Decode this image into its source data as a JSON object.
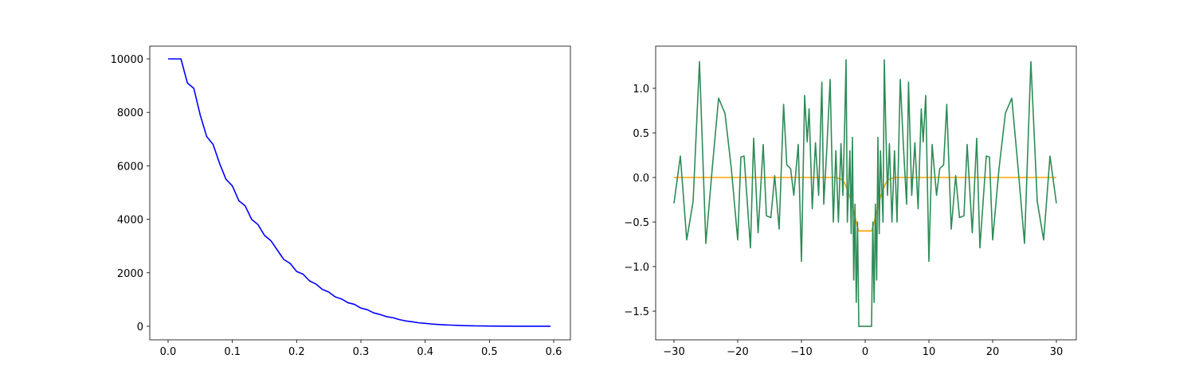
{
  "chart_data": [
    {
      "type": "line",
      "x": [
        0,
        0.01,
        0.02,
        0.03,
        0.04,
        0.05,
        0.06,
        0.07,
        0.08,
        0.09,
        0.1,
        0.11,
        0.12,
        0.13,
        0.14,
        0.15,
        0.16,
        0.17,
        0.18,
        0.19,
        0.2,
        0.21,
        0.22,
        0.23,
        0.24,
        0.25,
        0.26,
        0.27,
        0.28,
        0.29,
        0.3,
        0.31,
        0.32,
        0.33,
        0.34,
        0.35,
        0.36,
        0.37,
        0.38,
        0.39,
        0.4,
        0.41,
        0.42,
        0.43,
        0.44,
        0.45,
        0.46,
        0.47,
        0.48,
        0.49,
        0.5,
        0.52,
        0.54,
        0.56,
        0.58,
        0.595
      ],
      "values": [
        10000,
        10000,
        10000,
        9100,
        8900,
        7900,
        7100,
        6800,
        6100,
        5500,
        5250,
        4700,
        4500,
        4000,
        3800,
        3400,
        3200,
        2850,
        2500,
        2350,
        2050,
        1950,
        1700,
        1580,
        1380,
        1280,
        1100,
        1020,
        880,
        820,
        680,
        620,
        500,
        440,
        360,
        320,
        250,
        200,
        170,
        130,
        110,
        85,
        70,
        55,
        45,
        35,
        25,
        20,
        15,
        12,
        9,
        5,
        3,
        2,
        1,
        1
      ],
      "color": "#0000ff",
      "xlim": [
        -0.0285,
        0.626
      ],
      "xticks": [
        {
          "value": 0,
          "label": "0.0"
        },
        0.1,
        0.2,
        0.3,
        0.4,
        0.5,
        0.6
      ],
      "ylim": [
        -506,
        10476
      ],
      "yticks": [
        0,
        2000,
        4000,
        6000,
        8000,
        10000
      ]
    },
    {
      "type": "line",
      "x": [
        -30,
        -29,
        -28,
        -27,
        -26,
        -25,
        -24,
        -23,
        -22,
        -21,
        -20,
        -19.5,
        -19,
        -18,
        -17.5,
        -16.8,
        -16,
        -15.5,
        -14.8,
        -14.2,
        -13.5,
        -12.8,
        -12.3,
        -11.7,
        -11.2,
        -10.5,
        -10,
        -9.5,
        -9.1,
        -8.8,
        -8.3,
        -7.8,
        -7.3,
        -6.8,
        -6.5,
        -6,
        -5.5,
        -5,
        -4.6,
        -4.2,
        -3.8,
        -3.5,
        -3.2,
        -3,
        -2.8,
        -2.4,
        -2.2,
        -2,
        -1.8,
        -1.6,
        -1.4,
        -1.2,
        -1,
        1,
        1.2,
        1.4,
        1.6,
        1.8,
        2,
        2.2,
        2.4,
        2.8,
        3,
        3.2,
        3.5,
        3.8,
        4.2,
        4.6,
        5,
        5.5,
        6,
        6.5,
        6.8,
        7.3,
        7.8,
        8.3,
        8.8,
        9.1,
        9.5,
        10,
        10.5,
        11.2,
        11.7,
        12.3,
        12.8,
        13.5,
        14.2,
        14.8,
        15.5,
        16,
        16.8,
        17.5,
        18,
        19,
        19.5,
        20,
        21,
        22,
        23,
        24,
        25,
        26,
        27,
        28,
        29,
        30
      ],
      "series": [
        {
          "color": "#ffa500",
          "values": [
            0,
            0,
            0,
            0,
            0,
            0,
            0,
            0,
            0,
            0,
            0,
            0,
            0,
            0,
            0,
            0,
            0,
            0,
            0,
            0,
            0,
            0,
            0,
            0,
            0,
            0,
            0,
            0,
            0,
            0,
            0,
            0,
            0,
            0,
            0,
            0,
            0,
            0,
            0,
            -0.01,
            -0.02,
            -0.03,
            -0.07,
            -0.1,
            -0.14,
            -0.22,
            -0.27,
            -0.33,
            -0.38,
            -0.44,
            -0.5,
            -0.56,
            -0.6,
            -0.6,
            -0.56,
            -0.5,
            -0.44,
            -0.38,
            -0.33,
            -0.27,
            -0.22,
            -0.14,
            -0.1,
            -0.07,
            -0.03,
            -0.02,
            -0.01,
            0,
            0,
            0,
            0,
            0,
            0,
            0,
            0,
            0,
            0,
            0,
            0,
            0,
            0,
            0,
            0,
            0,
            0,
            0,
            0,
            0,
            0,
            0,
            0,
            0,
            0,
            0,
            0,
            0,
            0,
            0,
            0,
            0,
            0,
            0,
            0,
            0,
            0,
            0
          ]
        },
        {
          "color": "#2e8b57",
          "values": [
            -0.29,
            0.24,
            -0.7,
            -0.27,
            1.3,
            -0.74,
            0.1,
            0.89,
            0.72,
            0.1,
            -0.7,
            0.23,
            0.24,
            -0.79,
            0.44,
            -0.62,
            0.37,
            -0.43,
            -0.45,
            0.02,
            -0.58,
            0.82,
            0.14,
            0.1,
            -0.2,
            0.37,
            -0.94,
            0.92,
            0.4,
            0.77,
            -0.35,
            0.39,
            -0.2,
            1.07,
            -0.3,
            0.35,
            1.1,
            -0.5,
            0.3,
            -0.5,
            0.38,
            -0.2,
            0.65,
            1.32,
            -0.5,
            0.3,
            -0.63,
            0.45,
            -1.15,
            -0.3,
            -1.4,
            -0.5,
            -1.67,
            -1.67,
            -0.5,
            -1.4,
            -0.3,
            -1.15,
            0.45,
            -0.63,
            0.3,
            -0.5,
            1.32,
            0.65,
            -0.2,
            0.38,
            -0.5,
            0.3,
            -0.5,
            1.1,
            0.35,
            -0.3,
            1.07,
            -0.2,
            0.39,
            -0.35,
            0.77,
            0.4,
            0.92,
            -0.94,
            0.37,
            -0.2,
            0.1,
            0.14,
            0.82,
            -0.58,
            0.02,
            -0.45,
            -0.43,
            0.37,
            -0.62,
            0.44,
            -0.79,
            0.24,
            0.23,
            -0.7,
            0.1,
            0.72,
            0.89,
            0.1,
            -0.74,
            1.3,
            -0.27,
            -0.7,
            0.24,
            -0.29
          ]
        }
      ],
      "xlim": [
        -32.875,
        33.125
      ],
      "xticks": [
        {
          "value": -30,
          "label": "−30"
        },
        {
          "value": -20,
          "label": "−20"
        },
        {
          "value": -10,
          "label": "−10"
        },
        0,
        10,
        20,
        30
      ],
      "ylim": [
        -1.821,
        1.473
      ],
      "yticks": [
        {
          "value": -1.5,
          "label": "−1.5"
        },
        {
          "value": -1,
          "label": "−1.0"
        },
        {
          "value": -0.5,
          "label": "−0.5"
        },
        {
          "value": 0,
          "label": "0.0"
        },
        0.5,
        {
          "value": 1,
          "label": "1.0"
        }
      ]
    }
  ]
}
